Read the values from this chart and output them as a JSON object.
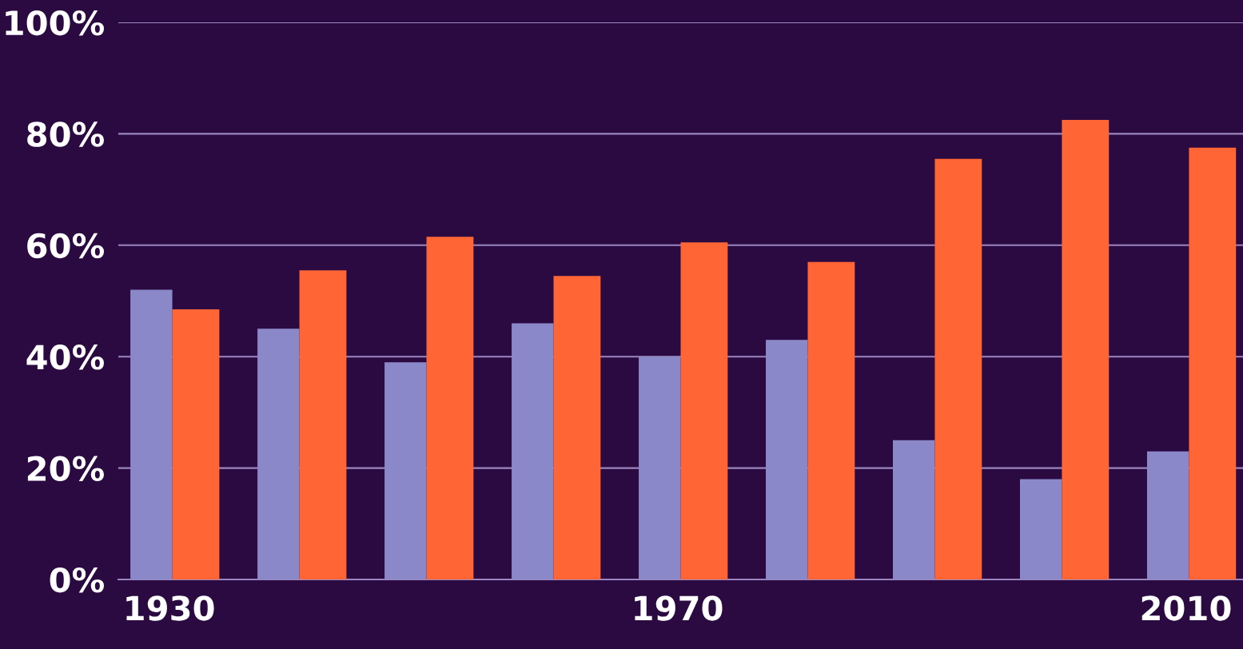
{
  "chart_data": {
    "type": "bar",
    "categories": [
      "1930",
      null,
      null,
      null,
      "1970",
      null,
      null,
      null,
      "2010"
    ],
    "series": [
      {
        "color": "#8b88c9",
        "values": [
          52,
          45,
          39,
          46,
          40,
          43,
          25,
          18,
          23
        ]
      },
      {
        "color": "#ff6535",
        "values": [
          48.5,
          55.5,
          61.5,
          54.5,
          60.5,
          57,
          75.5,
          82.5,
          77.5
        ]
      }
    ],
    "ylim": [
      0,
      100
    ],
    "yticks": [
      {
        "value": 0,
        "label": "0%"
      },
      {
        "value": 20,
        "label": "20%"
      },
      {
        "value": 40,
        "label": "40%"
      },
      {
        "value": 60,
        "label": "60%"
      },
      {
        "value": 80,
        "label": "80%"
      },
      {
        "value": 100,
        "label": "100%"
      }
    ],
    "grid": "y",
    "legend": false
  }
}
